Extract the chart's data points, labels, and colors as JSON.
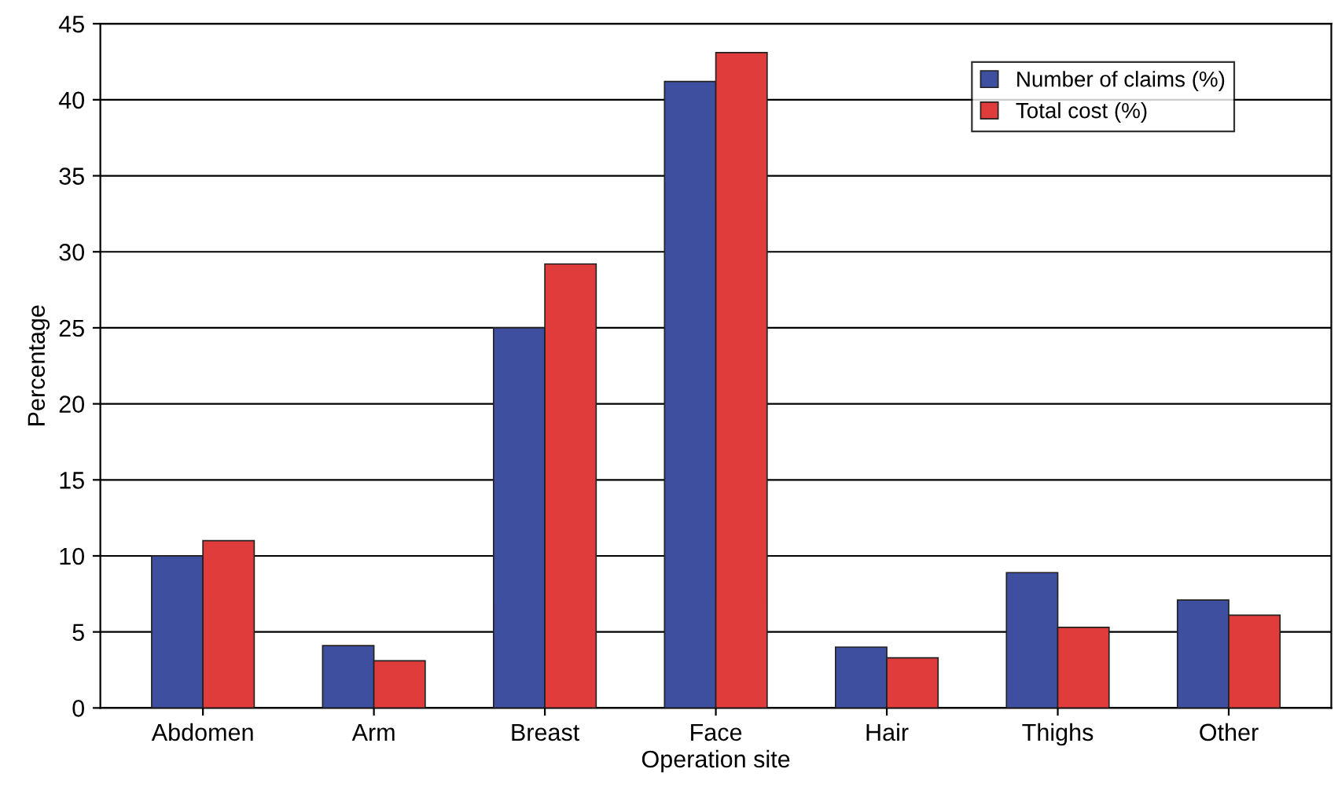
{
  "chart_data": {
    "type": "bar",
    "xlabel": "Operation site",
    "ylabel": "Percentage",
    "categories": [
      "Abdomen",
      "Arm",
      "Breast",
      "Face",
      "Hair",
      "Thighs",
      "Other"
    ],
    "series": [
      {
        "name": "Number of claims (%)",
        "color": "#3f4f9f",
        "values": [
          10,
          4.1,
          25,
          41.2,
          4,
          8.9,
          7.1
        ]
      },
      {
        "name": "Total cost (%)",
        "color": "#e03c3c",
        "values": [
          11,
          3.1,
          29.2,
          43.1,
          3.3,
          5.3,
          6.1
        ]
      }
    ],
    "ylim": [
      0,
      45
    ],
    "yticks": [
      0,
      5,
      10,
      15,
      20,
      25,
      30,
      35,
      40,
      45
    ],
    "grid": "y",
    "legend": "top right"
  }
}
